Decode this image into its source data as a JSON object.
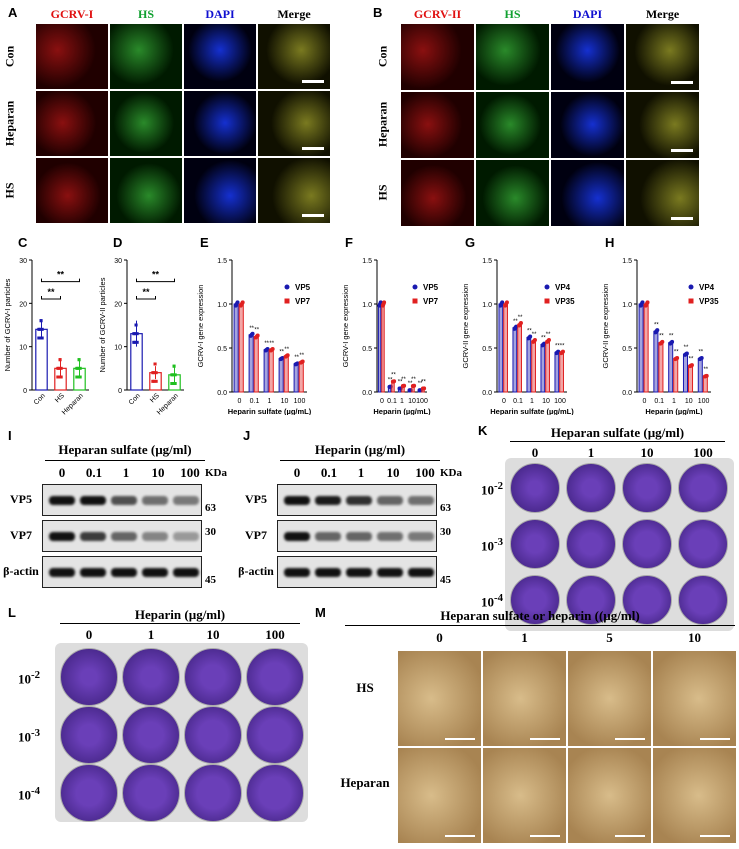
{
  "panelA": {
    "label": "A",
    "columns": [
      "GCRV-I",
      "HS",
      "DAPI",
      "Merge"
    ],
    "column_colors": [
      "#e01010",
      "#10a030",
      "#1010d0",
      "#000000"
    ],
    "rows": [
      "Con",
      "Heparan",
      "HS"
    ]
  },
  "panelB": {
    "label": "B",
    "columns": [
      "GCRV-II",
      "HS",
      "DAPI",
      "Merge"
    ],
    "column_colors": [
      "#e01010",
      "#10a030",
      "#1010d0",
      "#000000"
    ],
    "rows": [
      "Con",
      "Heparan",
      "HS"
    ]
  },
  "chart_data": [
    {
      "panel": "C",
      "type": "bar",
      "categories": [
        "Con",
        "HS",
        "Heparan"
      ],
      "values": [
        14,
        5,
        5
      ],
      "errors": [
        2,
        2,
        2
      ],
      "colors": [
        "#1a1ab0",
        "#e02020",
        "#20c020"
      ],
      "ylabel": "Number of GCRV-I  particles",
      "ylim": [
        0,
        30
      ],
      "yticks": [
        0,
        10,
        20,
        30
      ],
      "annotations": [
        "**",
        "**"
      ]
    },
    {
      "panel": "D",
      "type": "bar",
      "categories": [
        "Con",
        "HS",
        "Heparan"
      ],
      "values": [
        13,
        4,
        3.5
      ],
      "errors": [
        3,
        1.5,
        2
      ],
      "colors": [
        "#1a1ab0",
        "#e02020",
        "#20c020"
      ],
      "ylabel": "Number of GCRV-II particles",
      "ylim": [
        0,
        30
      ],
      "yticks": [
        0,
        10,
        20,
        30
      ],
      "annotations": [
        "**",
        "**"
      ]
    },
    {
      "panel": "E",
      "type": "bar",
      "categories": [
        "0",
        "0.1",
        "1",
        "10",
        "100"
      ],
      "series": [
        {
          "name": "VP5",
          "values": [
            1.0,
            0.65,
            0.48,
            0.38,
            0.32
          ],
          "color": "#1a1ab0"
        },
        {
          "name": "VP7",
          "values": [
            1.0,
            0.63,
            0.48,
            0.41,
            0.34
          ],
          "color": "#e02020"
        }
      ],
      "xlabel": "Heparin sulfate (µg/mL)",
      "ylabel": "GCRV-I gene expression",
      "ylim": [
        0,
        1.5
      ],
      "yticks": [
        "0.0",
        "0.5",
        "1.0",
        "1.5"
      ],
      "sig": "**"
    },
    {
      "panel": "F",
      "type": "bar",
      "categories": [
        "0",
        "0.1",
        "1",
        "10",
        "100"
      ],
      "series": [
        {
          "name": "VP5",
          "values": [
            1.0,
            0.06,
            0.04,
            0.02,
            0.02
          ],
          "color": "#1a1ab0"
        },
        {
          "name": "VP7",
          "values": [
            1.0,
            0.12,
            0.07,
            0.07,
            0.04
          ],
          "color": "#e02020"
        }
      ],
      "xlabel": "Heparin (µg/mL)",
      "ylabel": "GCRV-I gene expression",
      "ylim": [
        0,
        1.5
      ],
      "yticks": [
        "0.0",
        "0.5",
        "1.0",
        "1.5"
      ],
      "sig": "**"
    },
    {
      "panel": "G",
      "type": "bar",
      "categories": [
        "0",
        "0.1",
        "1",
        "10",
        "100"
      ],
      "series": [
        {
          "name": "VP4",
          "values": [
            1.0,
            0.73,
            0.62,
            0.54,
            0.45
          ],
          "color": "#1a1ab0"
        },
        {
          "name": "VP35",
          "values": [
            1.0,
            0.77,
            0.58,
            0.58,
            0.45
          ],
          "color": "#e02020"
        }
      ],
      "xlabel": "Heparin sulfate (µg/mL)",
      "ylabel": "GCRV-II gene expression",
      "ylim": [
        0,
        1.5
      ],
      "yticks": [
        "0.0",
        "0.5",
        "1.0",
        "1.5"
      ],
      "sig": "**"
    },
    {
      "panel": "H",
      "type": "bar",
      "categories": [
        "0",
        "0.1",
        "1",
        "10",
        "100"
      ],
      "series": [
        {
          "name": "VP4",
          "values": [
            1.0,
            0.69,
            0.56,
            0.43,
            0.38
          ],
          "color": "#1a1ab0"
        },
        {
          "name": "VP35",
          "values": [
            1.0,
            0.56,
            0.38,
            0.3,
            0.18
          ],
          "color": "#e02020"
        }
      ],
      "xlabel": "Heparin (µg/mL)",
      "ylabel": "GCRV-II gene expression",
      "ylim": [
        0,
        1.5
      ],
      "yticks": [
        "0.0",
        "0.5",
        "1.0",
        "1.5"
      ],
      "sig": "**"
    }
  ],
  "panelI": {
    "label": "I",
    "title": "Heparan sulfate (µg/ml)",
    "lanes": [
      "0",
      "0.1",
      "1",
      "10",
      "100"
    ],
    "unit": "KDa",
    "rows": [
      "VP5",
      "VP7",
      "β-actin"
    ],
    "markers": [
      "63",
      "30",
      "45"
    ],
    "intensity": {
      "VP5": [
        1,
        1,
        0.7,
        0.55,
        0.5
      ],
      "VP7": [
        1,
        0.8,
        0.6,
        0.45,
        0.35
      ],
      "β-actin": [
        1,
        1,
        1,
        1,
        1
      ]
    }
  },
  "panelJ": {
    "label": "J",
    "title": "Heparin (µg/ml)",
    "lanes": [
      "0",
      "0.1",
      "1",
      "10",
      "100"
    ],
    "unit": "KDa",
    "rows": [
      "VP5",
      "VP7",
      "β-actin"
    ],
    "markers": [
      "63",
      "30",
      "45"
    ],
    "intensity": {
      "VP5": [
        1,
        0.95,
        0.85,
        0.6,
        0.55
      ],
      "VP7": [
        1,
        0.6,
        0.6,
        0.55,
        0.5
      ],
      "β-actin": [
        1,
        1,
        1,
        1,
        1
      ]
    }
  },
  "panelK": {
    "label": "K",
    "title": "Heparan sulfate (µg/ml)",
    "columns": [
      "0",
      "1",
      "10",
      "100"
    ],
    "rows": [
      "10-2",
      "10-3",
      "10-4"
    ]
  },
  "panelL": {
    "label": "L",
    "title": "Heparin (µg/ml)",
    "columns": [
      "0",
      "1",
      "10",
      "100"
    ],
    "rows": [
      "10-2",
      "10-3",
      "10-4"
    ]
  },
  "panelM": {
    "label": "M",
    "title": "Heparan sulfate or heparin ((µg/ml)",
    "columns": [
      "0",
      "1",
      "5",
      "10"
    ],
    "rows": [
      "HS",
      "Heparan"
    ]
  }
}
